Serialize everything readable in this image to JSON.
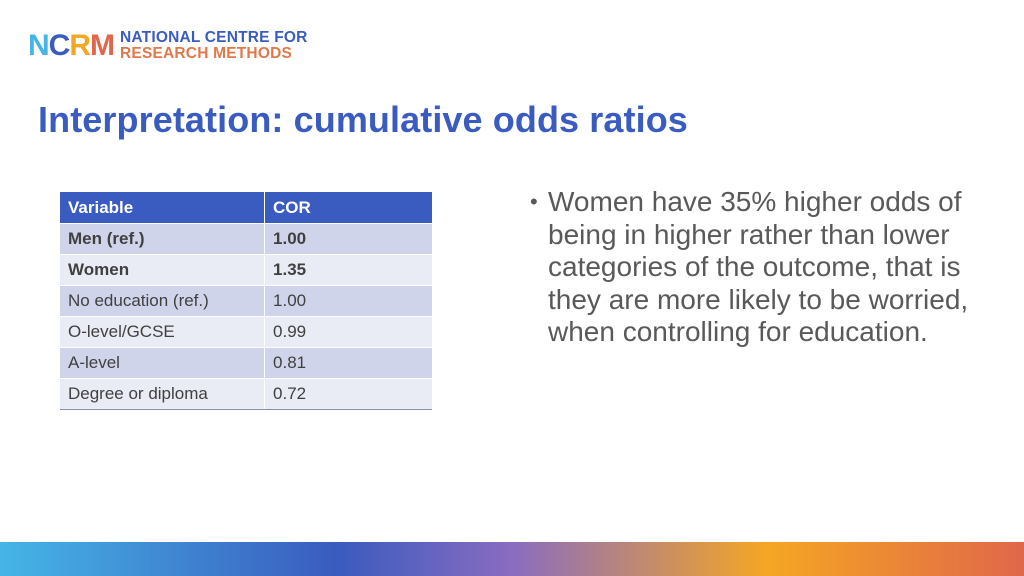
{
  "logo": {
    "mark": [
      "N",
      "C",
      "R",
      "M"
    ],
    "line1": "NATIONAL CENTRE FOR",
    "line2": "RESEARCH METHODS"
  },
  "title": "Interpretation: cumulative odds ratios",
  "table": {
    "headers": [
      "Variable",
      "COR"
    ],
    "rows": [
      {
        "variable": "Men (ref.)",
        "cor": "1.00",
        "bold": true
      },
      {
        "variable": "Women",
        "cor": "1.35",
        "bold": true
      },
      {
        "variable": "No education (ref.)",
        "cor": "1.00",
        "bold": false
      },
      {
        "variable": "O-level/GCSE",
        "cor": "0.99",
        "bold": false
      },
      {
        "variable": "A-level",
        "cor": "0.81",
        "bold": false
      },
      {
        "variable": "Degree or diploma",
        "cor": "0.72",
        "bold": false
      }
    ]
  },
  "bullets": [
    "Women have 35% higher odds of being in higher rather than lower categories of the outcome, that is they are more likely to be worried, when controlling for education."
  ],
  "colors": {
    "brand_blue": "#3a5bbf",
    "light_blue": "#45b5e6",
    "orange": "#f5a623",
    "coral": "#e0674a",
    "text_grey": "#595959"
  }
}
